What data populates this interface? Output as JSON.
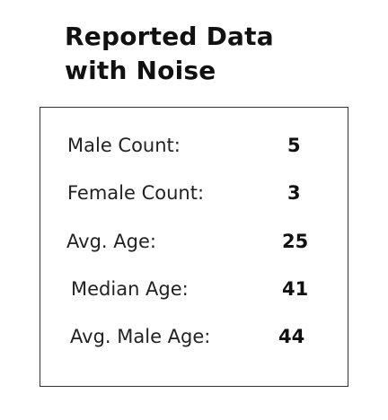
{
  "title": {
    "line1": "Reported Data",
    "line2": "with Noise"
  },
  "stats": [
    {
      "label": "Male Count:",
      "value": "5"
    },
    {
      "label": "Female Count:",
      "value": "3"
    },
    {
      "label": "Avg. Age:",
      "value": "25"
    },
    {
      "label": "Median Age:",
      "value": "41"
    },
    {
      "label": "Avg. Male Age:",
      "value": "44"
    }
  ]
}
